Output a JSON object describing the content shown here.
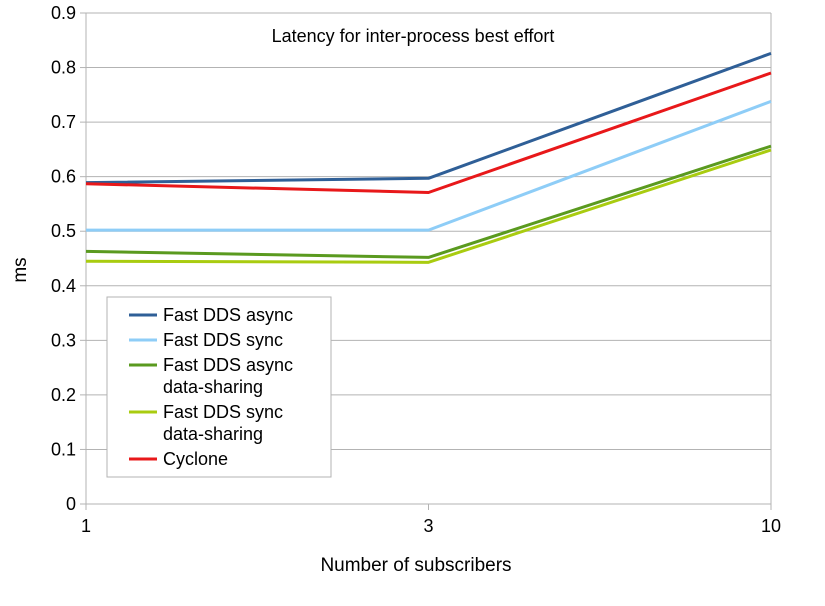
{
  "chart_data": {
    "type": "line",
    "title": "Latency for inter-process best effort",
    "xlabel": "Number of subscribers",
    "ylabel": "ms",
    "categories": [
      "1",
      "3",
      "10"
    ],
    "ylim": [
      0,
      0.9
    ],
    "yticks": [
      "0",
      "0.1",
      "0.2",
      "0.3",
      "0.4",
      "0.5",
      "0.6",
      "0.7",
      "0.8",
      "0.9"
    ],
    "grid": true,
    "legend_position": "bottom-left",
    "series": [
      {
        "name": "Fast DDS async",
        "lines": [
          "Fast DDS async"
        ],
        "color": "#2f5f97",
        "values": [
          0.589,
          0.597,
          0.826
        ]
      },
      {
        "name": "Fast DDS sync",
        "lines": [
          "Fast DDS sync"
        ],
        "color": "#8ecdf7",
        "values": [
          0.502,
          0.502,
          0.738
        ]
      },
      {
        "name": "Fast DDS async data-sharing",
        "lines": [
          "Fast DDS async",
          "data-sharing"
        ],
        "color": "#5a9a1f",
        "values": [
          0.463,
          0.452,
          0.656
        ]
      },
      {
        "name": "Fast DDS sync data-sharing",
        "lines": [
          "Fast DDS sync",
          "data-sharing"
        ],
        "color": "#a9cc10",
        "values": [
          0.445,
          0.443,
          0.649
        ]
      },
      {
        "name": "Cyclone",
        "lines": [
          "Cyclone"
        ],
        "color": "#e8181a",
        "values": [
          0.587,
          0.571,
          0.79
        ]
      }
    ]
  }
}
